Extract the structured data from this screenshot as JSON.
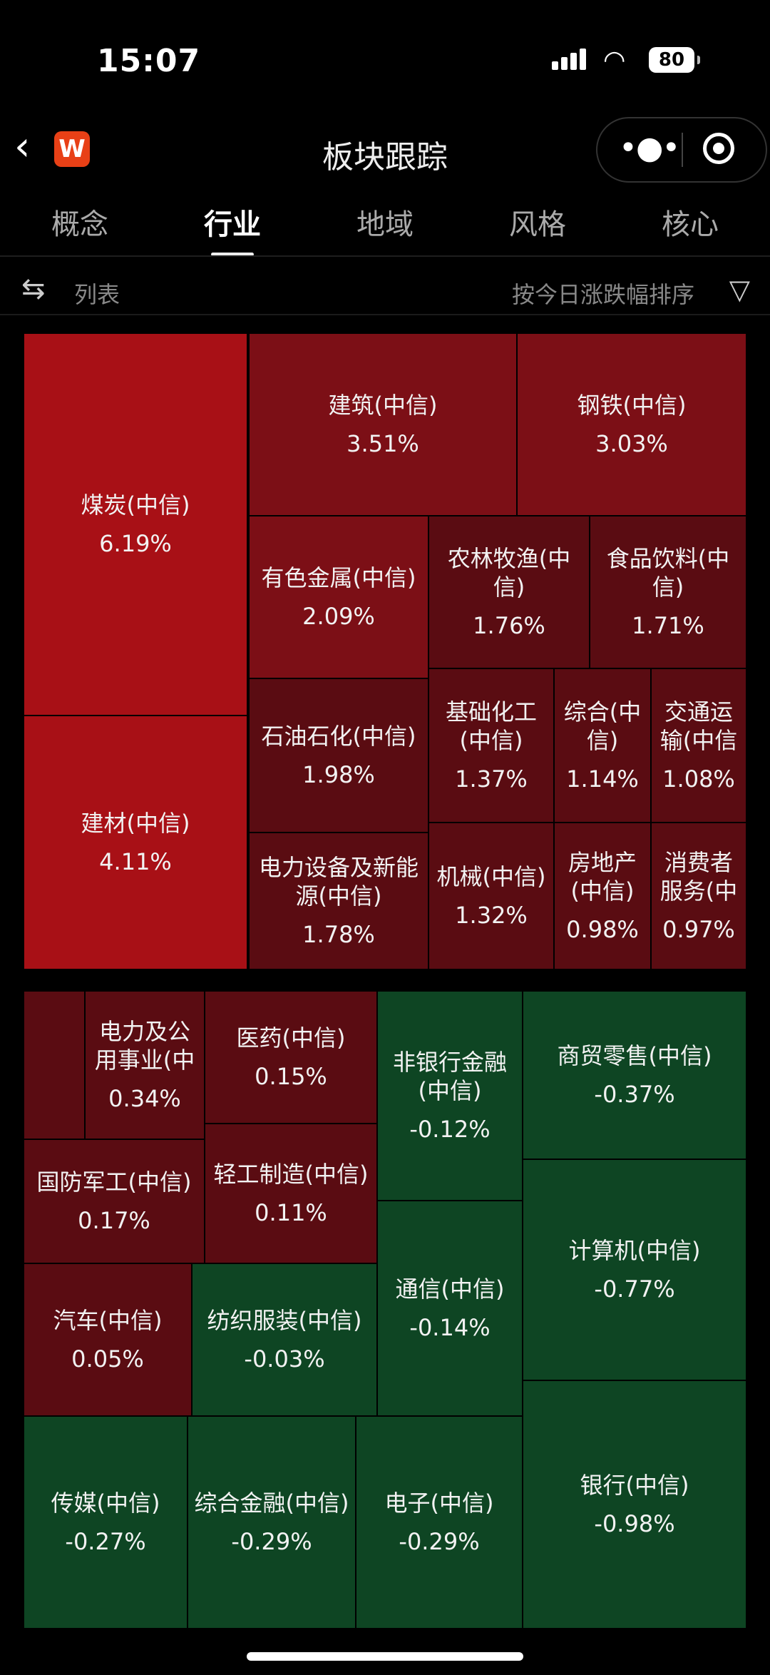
{
  "status_bar": {
    "time": "15:07",
    "battery": "80"
  },
  "nav": {
    "logo_text": "W",
    "title": "板块跟踪"
  },
  "tabs": [
    {
      "label": "概念",
      "active": false
    },
    {
      "label": "行业",
      "active": true
    },
    {
      "label": "地域",
      "active": false
    },
    {
      "label": "风格",
      "active": false
    },
    {
      "label": "核心",
      "active": false
    }
  ],
  "toolbar": {
    "view_label": "列表",
    "sort_label": "按今日涨跌幅排序"
  },
  "colors": {
    "strong_red": "#a81016",
    "mid_red": "#7c0f16",
    "dark_red": "#5a0c12",
    "green": "#0e4523"
  },
  "treemap": [
    {
      "name": "煤炭(中信)",
      "change": "6.19%",
      "tone": "strong_red"
    },
    {
      "name": "建材(中信)",
      "change": "4.11%",
      "tone": "strong_red"
    },
    {
      "name": "建筑(中信)",
      "change": "3.51%",
      "tone": "mid_red"
    },
    {
      "name": "钢铁(中信)",
      "change": "3.03%",
      "tone": "mid_red"
    },
    {
      "name": "有色金属(中信)",
      "change": "2.09%",
      "tone": "mid_red"
    },
    {
      "name": "农林牧渔(中信)",
      "change": "1.76%",
      "tone": "dark_red"
    },
    {
      "name": "食品饮料(中信)",
      "change": "1.71%",
      "tone": "dark_red"
    },
    {
      "name": "石油石化(中信)",
      "change": "1.98%",
      "tone": "dark_red"
    },
    {
      "name": "基础化工(中信)",
      "change": "1.37%",
      "tone": "dark_red"
    },
    {
      "name": "综合(中信)",
      "change": "1.14%",
      "tone": "dark_red"
    },
    {
      "name": "交通运输(中信",
      "change": "1.08%",
      "tone": "dark_red"
    },
    {
      "name": "电力设备及新能源(中信)",
      "change": "1.78%",
      "tone": "dark_red"
    },
    {
      "name": "机械(中信)",
      "change": "1.32%",
      "tone": "dark_red"
    },
    {
      "name": "房地产(中信)",
      "change": "0.98%",
      "tone": "dark_red"
    },
    {
      "name": "消费者服务(中",
      "change": "0.97%",
      "tone": "dark_red"
    },
    {
      "name": "",
      "change": "",
      "tone": "dark_red"
    },
    {
      "name": "电力及公用事业(中",
      "change": "0.34%",
      "tone": "dark_red"
    },
    {
      "name": "医药(中信)",
      "change": "0.15%",
      "tone": "dark_red"
    },
    {
      "name": "国防军工(中信)",
      "change": "0.17%",
      "tone": "dark_red"
    },
    {
      "name": "轻工制造(中信)",
      "change": "0.11%",
      "tone": "dark_red"
    },
    {
      "name": "汽车(中信)",
      "change": "0.05%",
      "tone": "dark_red"
    },
    {
      "name": "纺织服装(中信)",
      "change": "-0.03%",
      "tone": "green"
    },
    {
      "name": "非银行金融(中信)",
      "change": "-0.12%",
      "tone": "green"
    },
    {
      "name": "商贸零售(中信)",
      "change": "-0.37%",
      "tone": "green"
    },
    {
      "name": "计算机(中信)",
      "change": "-0.77%",
      "tone": "green"
    },
    {
      "name": "通信(中信)",
      "change": "-0.14%",
      "tone": "green"
    },
    {
      "name": "传媒(中信)",
      "change": "-0.27%",
      "tone": "green"
    },
    {
      "name": "综合金融(中信)",
      "change": "-0.29%",
      "tone": "green"
    },
    {
      "name": "电子(中信)",
      "change": "-0.29%",
      "tone": "green"
    },
    {
      "name": "银行(中信)",
      "change": "-0.98%",
      "tone": "green"
    }
  ]
}
